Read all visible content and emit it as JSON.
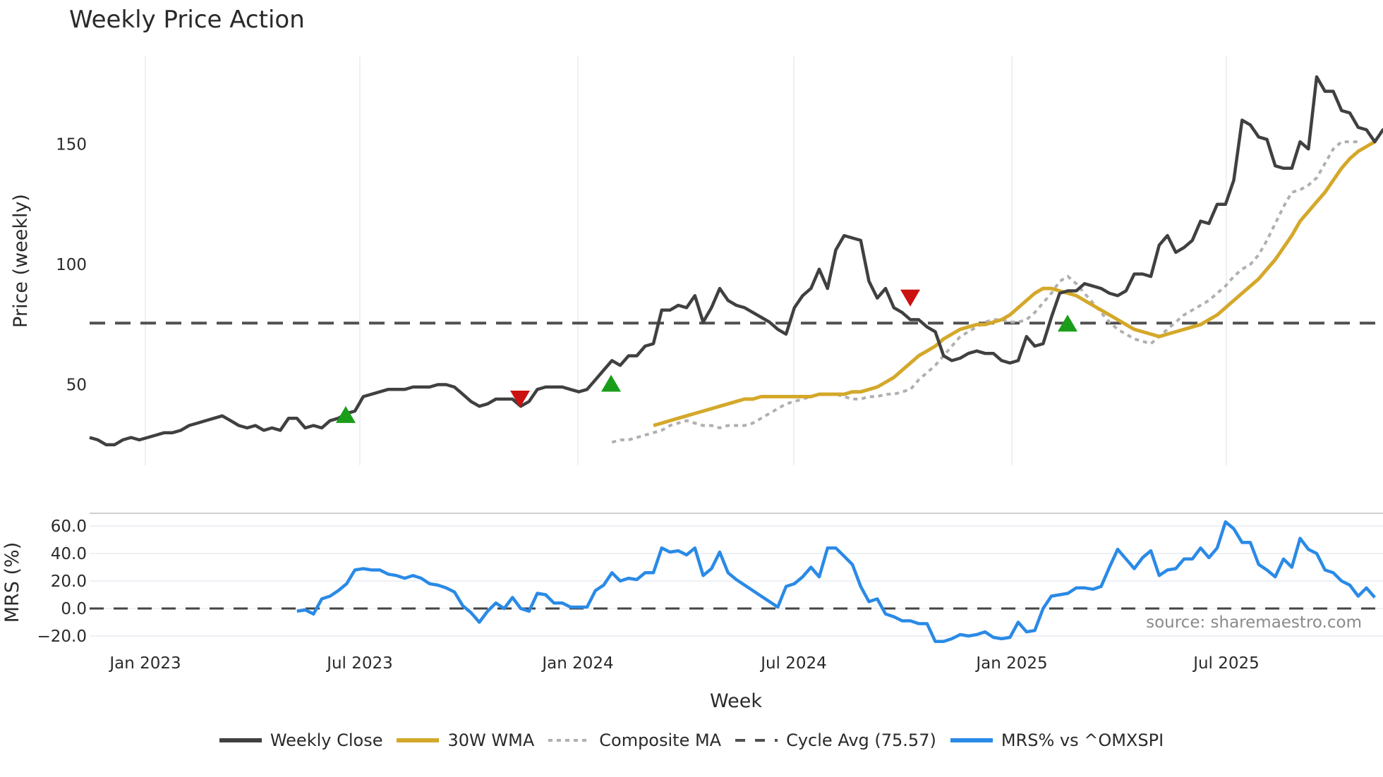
{
  "title": "Weekly Price Action",
  "price_panel": {
    "ylabel": "Price (weekly)",
    "yticks": [
      "50",
      "100",
      "150"
    ],
    "cycle_avg": 75.57
  },
  "mrs_panel": {
    "ylabel": "MRS (%)",
    "yticks": [
      "60.0",
      "40.0",
      "20.0",
      "0.0",
      "−20.0"
    ],
    "source": "source: sharemaestro.com"
  },
  "xaxis": {
    "title": "Week",
    "ticks": [
      "Jan 2023",
      "Jul 2023",
      "Jan 2024",
      "Jul 2024",
      "Jan 2025",
      "Jul 2025"
    ]
  },
  "legend": [
    {
      "label": "Weekly Close",
      "style": "solid",
      "color": "#404040"
    },
    {
      "label": "30W WMA",
      "style": "solid",
      "color": "#d4a82a"
    },
    {
      "label": "Composite MA",
      "style": "dotted",
      "color": "#b0b0b0"
    },
    {
      "label": "Cycle Avg (75.57)",
      "style": "dashed",
      "color": "#505050"
    },
    {
      "label": "MRS% vs ^OMXSPI",
      "style": "solid",
      "color": "#2a8ae6"
    }
  ],
  "colors": {
    "close": "#404040",
    "wma": "#d4a82a",
    "composite": "#b0b0b0",
    "cycle": "#505050",
    "mrs": "#2a8ae6",
    "buy_signal": "#1a9e1a",
    "sell_signal": "#cc1111",
    "grid": "#eef0f4"
  },
  "chart_data": [
    {
      "type": "line",
      "title": "Weekly Price Action",
      "xlabel": "Week",
      "ylabel": "Price (weekly)",
      "ylim": [
        18,
        186
      ],
      "x_ticks": [
        "Jan 2023",
        "Jul 2023",
        "Jan 2024",
        "Jul 2024",
        "Jan 2025",
        "Jul 2025"
      ],
      "series": [
        {
          "name": "Weekly Close",
          "values": [
            28,
            27,
            25,
            25,
            27,
            28,
            27,
            28,
            29,
            30,
            30,
            31,
            33,
            34,
            35,
            36,
            37,
            35,
            33,
            32,
            33,
            31,
            32,
            31,
            36,
            36,
            32,
            33,
            32,
            35,
            36,
            38,
            39,
            45,
            46,
            47,
            48,
            48,
            48,
            49,
            49,
            49,
            50,
            50,
            49,
            46,
            43,
            41,
            42,
            44,
            44,
            44,
            41,
            43,
            48,
            49,
            49,
            49,
            48,
            47,
            48,
            52,
            56,
            60,
            58,
            62,
            62,
            66,
            67,
            81,
            81,
            83,
            82,
            87,
            76,
            82,
            90,
            85,
            83,
            82,
            80,
            78,
            76,
            73,
            71,
            82,
            87,
            90,
            98,
            90,
            106,
            112,
            111,
            110,
            93,
            86,
            90,
            82,
            80,
            77,
            77,
            74,
            72,
            62,
            60,
            61,
            63,
            64,
            63,
            63,
            60,
            59,
            60,
            70,
            66,
            67,
            78,
            88,
            89,
            89,
            92,
            91,
            90,
            88,
            87,
            89,
            96,
            96,
            95,
            108,
            112,
            105,
            107,
            110,
            118,
            117,
            125,
            125,
            135,
            160,
            158,
            153,
            152,
            141,
            140,
            140,
            151,
            148,
            178,
            172,
            172,
            164,
            163,
            157,
            156,
            151,
            156,
            151
          ]
        },
        {
          "name": "30W WMA",
          "values_note": "begins ~Jun 2023",
          "values": [
            33,
            34,
            35,
            36,
            37,
            38,
            39,
            40,
            41,
            42,
            43,
            44,
            44,
            45,
            45,
            45,
            45,
            45,
            45,
            45,
            46,
            46,
            46,
            46,
            47,
            47,
            48,
            49,
            51,
            53,
            56,
            59,
            62,
            64,
            66,
            69,
            71,
            73,
            74,
            75,
            75,
            76,
            77,
            79,
            82,
            85,
            88,
            90,
            90,
            89,
            88,
            87,
            85,
            83,
            81,
            79,
            77,
            75,
            73,
            72,
            71,
            70,
            71,
            72,
            73,
            74,
            75,
            77,
            79,
            82,
            85,
            88,
            91,
            94,
            98,
            102,
            107,
            112,
            118,
            122,
            126,
            130,
            135,
            140,
            144,
            147,
            149,
            151
          ]
        },
        {
          "name": "Composite MA",
          "values_note": "begins ~Jan 2023",
          "values": [
            26,
            27,
            27,
            28,
            29,
            30,
            31,
            33,
            34,
            35,
            34,
            33,
            33,
            32,
            33,
            33,
            33,
            34,
            36,
            38,
            40,
            42,
            43,
            44,
            45,
            46,
            46,
            46,
            45,
            44,
            44,
            45,
            45,
            46,
            46,
            47,
            48,
            52,
            55,
            58,
            62,
            66,
            70,
            72,
            74,
            76,
            77,
            77,
            76,
            76,
            77,
            80,
            84,
            88,
            93,
            95,
            92,
            88,
            84,
            80,
            76,
            73,
            71,
            69,
            68,
            67,
            70,
            73,
            76,
            79,
            81,
            83,
            85,
            88,
            91,
            95,
            98,
            100,
            104,
            110,
            117,
            124,
            130,
            131,
            133,
            136,
            142,
            148,
            151,
            151,
            151
          ]
        },
        {
          "name": "Cycle Avg (75.57)",
          "values": [
            75.57
          ]
        }
      ],
      "signals": [
        {
          "type": "buy",
          "date": "Jul 2023",
          "price": 37
        },
        {
          "type": "sell",
          "date": "Nov 2023",
          "price": 44
        },
        {
          "type": "buy",
          "date": "Feb 2024",
          "price": 50
        },
        {
          "type": "sell",
          "date": "Oct 2024",
          "price": 86
        },
        {
          "type": "buy",
          "date": "Mar 2025",
          "price": 75
        }
      ]
    },
    {
      "type": "line",
      "title": "",
      "xlabel": "Week",
      "ylabel": "MRS (%)",
      "ylim": [
        -28,
        68
      ],
      "y_ticks": [
        -20,
        0,
        20,
        40,
        60
      ],
      "series": [
        {
          "name": "MRS% vs ^OMXSPI",
          "values_note": "begins ~May 2023",
          "values": [
            -2,
            -1,
            -4,
            7,
            9,
            13,
            18,
            28,
            29,
            28,
            28,
            25,
            24,
            22,
            24,
            22,
            18,
            17,
            15,
            12,
            2,
            -3,
            -10,
            -2,
            4,
            0,
            8,
            0,
            -2,
            11,
            10,
            4,
            4,
            1,
            1,
            1,
            13,
            17,
            26,
            20,
            22,
            21,
            26,
            26,
            44,
            41,
            42,
            39,
            44,
            24,
            29,
            41,
            26,
            21,
            17,
            13,
            9,
            5,
            1,
            16,
            18,
            23,
            30,
            23,
            44,
            44,
            38,
            32,
            16,
            5,
            7,
            -4,
            -6,
            -9,
            -9,
            -11,
            -11,
            -24,
            -24,
            -22,
            -19,
            -20,
            -19,
            -17,
            -21,
            -22,
            -21,
            -10,
            -17,
            -16,
            0,
            9,
            10,
            11,
            15,
            15,
            14,
            16,
            30,
            43,
            36,
            29,
            37,
            42,
            24,
            28,
            29,
            36,
            36,
            44,
            37,
            44,
            63,
            58,
            48,
            48,
            32,
            28,
            23,
            36,
            30,
            51,
            43,
            40,
            28,
            26,
            20,
            17,
            9,
            15,
            8
          ]
        },
        {
          "name": "Zero line",
          "values": [
            0
          ]
        }
      ]
    }
  ]
}
